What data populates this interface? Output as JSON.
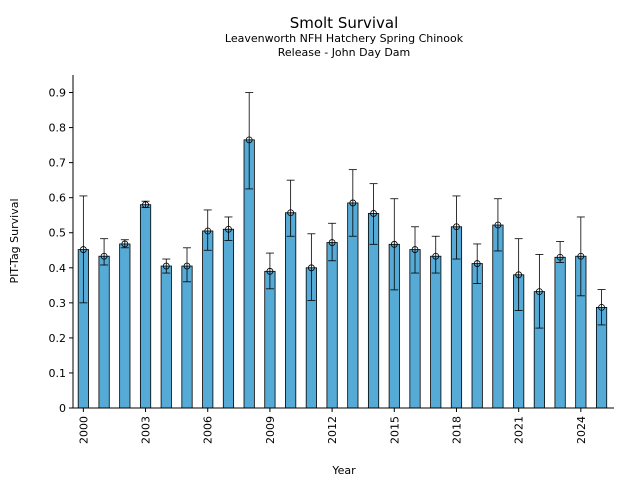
{
  "chart_data": {
    "type": "bar",
    "title": "Smolt Survival",
    "subtitle_lines": [
      "Leavenworth NFH Hatchery Spring Chinook",
      "Release - John Day Dam"
    ],
    "xlabel": "Year",
    "ylabel": "PIT-Tag Survival",
    "ylim": [
      0,
      0.95
    ],
    "yticks": [
      0,
      0.1,
      0.2,
      0.3,
      0.4,
      0.5,
      0.6,
      0.7,
      0.8,
      0.9
    ],
    "xlim": [
      1999.5,
      2025.6
    ],
    "xticks": [
      2000,
      2003,
      2006,
      2009,
      2012,
      2015,
      2018,
      2021,
      2024
    ],
    "bar_color": "#56aad6",
    "grid": false,
    "legend": "none",
    "categories": [
      2000,
      2001,
      2002,
      2003,
      2004,
      2005,
      2006,
      2007,
      2008,
      2009,
      2010,
      2011,
      2012,
      2013,
      2014,
      2015,
      2016,
      2017,
      2018,
      2019,
      2020,
      2021,
      2022,
      2023,
      2024,
      2025
    ],
    "values": [
      0.452,
      0.433,
      0.468,
      0.58,
      0.405,
      0.405,
      0.505,
      0.51,
      0.765,
      0.39,
      0.557,
      0.4,
      0.472,
      0.585,
      0.555,
      0.467,
      0.452,
      0.433,
      0.517,
      0.412,
      0.522,
      0.38,
      0.332,
      0.43,
      0.433,
      0.287
    ],
    "error_low": [
      0.3,
      0.408,
      0.457,
      0.572,
      0.385,
      0.36,
      0.45,
      0.478,
      0.625,
      0.34,
      0.49,
      0.307,
      0.42,
      0.49,
      0.467,
      0.337,
      0.385,
      0.385,
      0.425,
      0.355,
      0.448,
      0.278,
      0.228,
      0.415,
      0.32,
      0.237
    ],
    "error_high": [
      0.605,
      0.483,
      0.48,
      0.59,
      0.425,
      0.457,
      0.565,
      0.545,
      0.9,
      0.442,
      0.65,
      0.497,
      0.527,
      0.68,
      0.64,
      0.597,
      0.517,
      0.49,
      0.605,
      0.468,
      0.597,
      0.483,
      0.438,
      0.475,
      0.545,
      0.338
    ]
  }
}
